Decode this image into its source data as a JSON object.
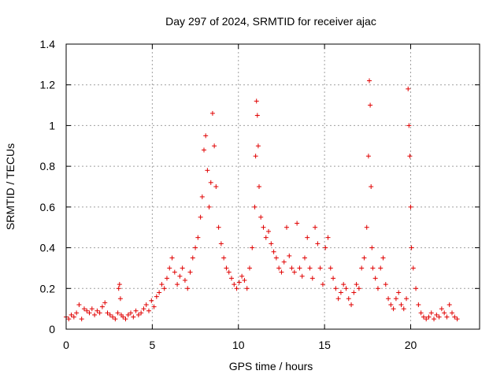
{
  "chart_data": {
    "type": "scatter",
    "title": "Day 297 of 2024, SRMTID for receiver ajac",
    "xlabel": "GPS time / hours",
    "ylabel": "SRMTID / TECUs",
    "xlim": [
      0,
      24
    ],
    "ylim": [
      0,
      1.4
    ],
    "grid": true,
    "marker": "+",
    "marker_color": "#e00000",
    "x_ticks": [
      0,
      5,
      10,
      15,
      20
    ],
    "x_tick_labels": [
      "0",
      "5",
      "10",
      "15",
      "20"
    ],
    "y_ticks": [
      0,
      0.2,
      0.4,
      0.6,
      0.8,
      1.0,
      1.2,
      1.4
    ],
    "y_tick_labels": [
      "0",
      "0.2",
      "0.4",
      "0.6",
      "0.8",
      "1",
      "1.2",
      "1.4"
    ],
    "series": [
      {
        "name": "SRMTID",
        "x": [
          0.0,
          0.15,
          0.3,
          0.45,
          0.6,
          0.75,
          0.9,
          1.05,
          1.2,
          1.35,
          1.5,
          1.65,
          1.8,
          1.95,
          2.1,
          2.25,
          2.4,
          2.55,
          2.7,
          2.85,
          3.0,
          3.05,
          3.1,
          3.15,
          3.2,
          3.3,
          3.45,
          3.6,
          3.75,
          3.9,
          4.05,
          4.2,
          4.35,
          4.5,
          4.65,
          4.8,
          4.95,
          5.1,
          5.25,
          5.4,
          5.55,
          5.7,
          5.85,
          6.0,
          6.15,
          6.3,
          6.45,
          6.6,
          6.75,
          6.9,
          7.05,
          7.2,
          7.35,
          7.5,
          7.65,
          7.8,
          7.9,
          8.0,
          8.1,
          8.2,
          8.3,
          8.4,
          8.5,
          8.6,
          8.7,
          8.85,
          9.0,
          9.15,
          9.3,
          9.45,
          9.6,
          9.75,
          9.9,
          10.05,
          10.2,
          10.35,
          10.5,
          10.65,
          10.8,
          10.95,
          11.0,
          11.05,
          11.1,
          11.15,
          11.2,
          11.3,
          11.45,
          11.6,
          11.75,
          11.9,
          12.05,
          12.2,
          12.35,
          12.5,
          12.65,
          12.8,
          12.95,
          13.1,
          13.25,
          13.4,
          13.55,
          13.7,
          13.85,
          14.0,
          14.15,
          14.3,
          14.45,
          14.6,
          14.75,
          14.9,
          15.05,
          15.2,
          15.35,
          15.5,
          15.65,
          15.8,
          15.95,
          16.1,
          16.25,
          16.4,
          16.55,
          16.7,
          16.85,
          17.0,
          17.15,
          17.3,
          17.45,
          17.55,
          17.6,
          17.65,
          17.7,
          17.75,
          17.8,
          17.95,
          18.1,
          18.25,
          18.4,
          18.55,
          18.7,
          18.85,
          19.0,
          19.15,
          19.3,
          19.45,
          19.6,
          19.75,
          19.85,
          19.9,
          19.95,
          20.0,
          20.05,
          20.15,
          20.3,
          20.45,
          20.6,
          20.75,
          20.9,
          21.05,
          21.2,
          21.35,
          21.5,
          21.65,
          21.8,
          21.95,
          22.1,
          22.25,
          22.4,
          22.55,
          22.7
        ],
        "y": [
          0.06,
          0.05,
          0.07,
          0.06,
          0.08,
          0.12,
          0.05,
          0.1,
          0.09,
          0.08,
          0.1,
          0.07,
          0.09,
          0.08,
          0.11,
          0.13,
          0.08,
          0.07,
          0.06,
          0.05,
          0.08,
          0.2,
          0.22,
          0.15,
          0.07,
          0.06,
          0.05,
          0.07,
          0.08,
          0.06,
          0.09,
          0.07,
          0.08,
          0.1,
          0.12,
          0.09,
          0.14,
          0.11,
          0.16,
          0.18,
          0.22,
          0.2,
          0.25,
          0.3,
          0.35,
          0.28,
          0.22,
          0.26,
          0.3,
          0.24,
          0.2,
          0.28,
          0.35,
          0.4,
          0.45,
          0.55,
          0.65,
          0.88,
          0.95,
          0.78,
          0.6,
          0.72,
          1.06,
          0.9,
          0.7,
          0.5,
          0.42,
          0.35,
          0.3,
          0.28,
          0.25,
          0.22,
          0.2,
          0.23,
          0.26,
          0.24,
          0.2,
          0.3,
          0.4,
          0.6,
          0.85,
          1.12,
          1.05,
          0.9,
          0.7,
          0.55,
          0.5,
          0.45,
          0.48,
          0.42,
          0.38,
          0.35,
          0.3,
          0.28,
          0.33,
          0.5,
          0.36,
          0.3,
          0.28,
          0.52,
          0.3,
          0.26,
          0.35,
          0.45,
          0.3,
          0.25,
          0.5,
          0.42,
          0.3,
          0.22,
          0.4,
          0.45,
          0.3,
          0.25,
          0.2,
          0.15,
          0.18,
          0.22,
          0.2,
          0.15,
          0.12,
          0.18,
          0.22,
          0.2,
          0.3,
          0.35,
          0.5,
          0.85,
          1.22,
          1.1,
          0.7,
          0.4,
          0.3,
          0.25,
          0.2,
          0.3,
          0.35,
          0.22,
          0.15,
          0.12,
          0.1,
          0.15,
          0.18,
          0.12,
          0.1,
          0.15,
          1.18,
          1.0,
          0.85,
          0.6,
          0.4,
          0.3,
          0.2,
          0.12,
          0.08,
          0.06,
          0.05,
          0.06,
          0.08,
          0.05,
          0.07,
          0.06,
          0.1,
          0.08,
          0.06,
          0.12,
          0.08,
          0.06,
          0.05
        ]
      }
    ]
  }
}
